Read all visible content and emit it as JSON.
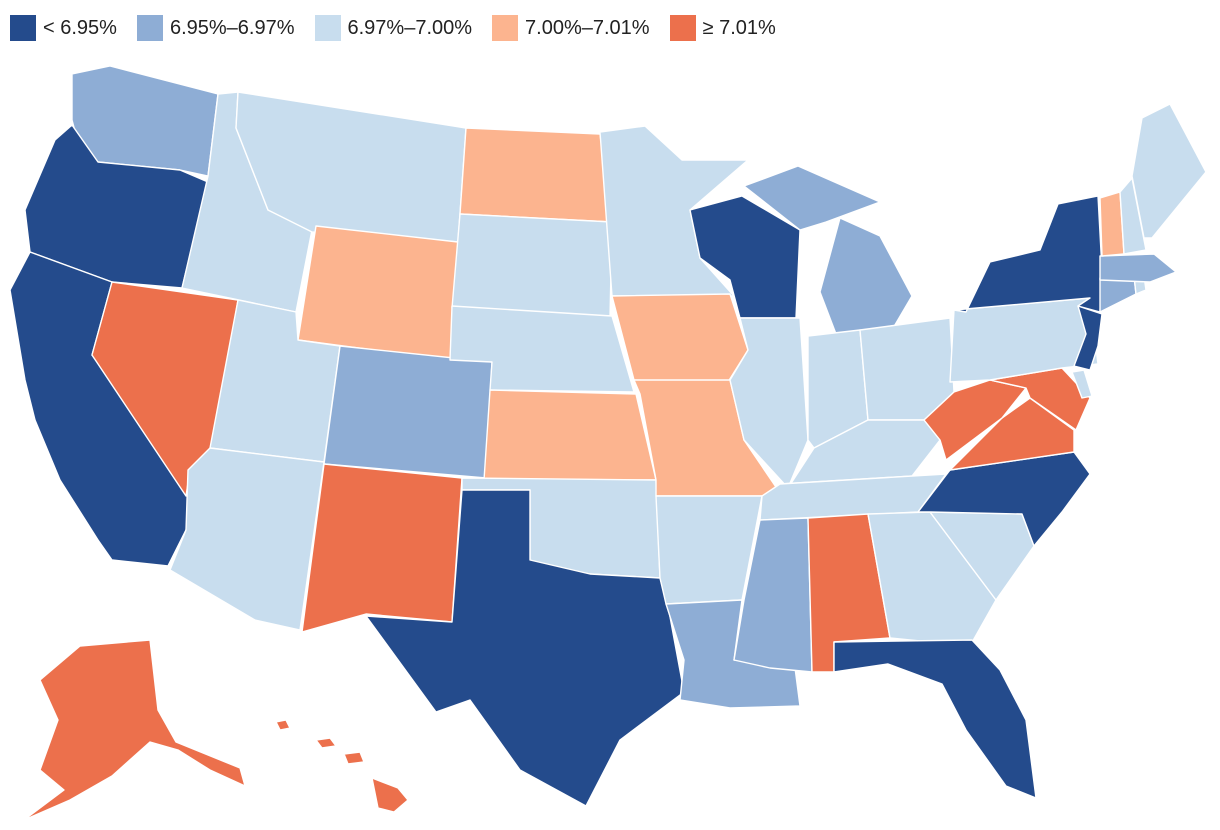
{
  "legend": [
    {
      "label": "< 6.95%",
      "color": "#244b8c"
    },
    {
      "label": "6.95%–6.97%",
      "color": "#8eadd5"
    },
    {
      "label": "6.97%–7.00%",
      "color": "#c8ddee"
    },
    {
      "label": "7.00%–7.01%",
      "color": "#fcb48f"
    },
    {
      "label": "≥ 7.01%",
      "color": "#ec704c"
    }
  ],
  "states": {
    "WA": 1,
    "OR": 0,
    "CA": 0,
    "NV": 4,
    "ID": 2,
    "MT": 2,
    "WY": 3,
    "UT": 2,
    "AZ": 2,
    "NM": 4,
    "CO": 1,
    "ND": 3,
    "SD": 2,
    "NE": 2,
    "KS": 3,
    "OK": 2,
    "TX": 0,
    "MN": 2,
    "IA": 3,
    "MO": 3,
    "AR": 2,
    "LA": 1,
    "WI": 0,
    "IL": 2,
    "MI": 1,
    "IN": 2,
    "OH": 2,
    "KY": 2,
    "TN": 2,
    "MS": 1,
    "AL": 4,
    "GA": 2,
    "FL": 0,
    "SC": 2,
    "NC": 0,
    "VA": 4,
    "WV": 4,
    "MD": 4,
    "DE": 2,
    "PA": 2,
    "NJ": 0,
    "NY": 0,
    "CT": 1,
    "RI": 2,
    "MA": 1,
    "VT": 3,
    "NH": 2,
    "ME": 2,
    "AK": 4,
    "HI": 4
  }
}
